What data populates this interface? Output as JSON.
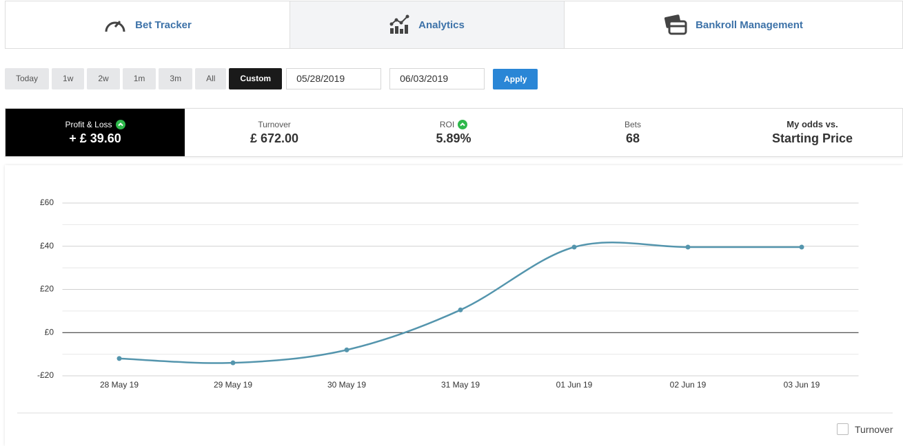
{
  "tabs": [
    "Bet Tracker",
    "Analytics",
    "Bankroll Management"
  ],
  "filters": [
    "Today",
    "1w",
    "2w",
    "1m",
    "3m",
    "All",
    "Custom"
  ],
  "date_from": "05/28/2019",
  "date_to": "06/03/2019",
  "apply": "Apply",
  "stats": [
    {
      "label": "Profit & Loss",
      "value": "+ £ 39.60"
    },
    {
      "label": "Turnover",
      "value": "£ 672.00"
    },
    {
      "label": "ROI",
      "value": "5.89%"
    },
    {
      "label": "Bets",
      "value": "68"
    },
    {
      "label": "My odds vs.",
      "value": "Starting Price"
    }
  ],
  "chart_data": {
    "type": "line",
    "categories": [
      "28 May 19",
      "29 May 19",
      "30 May 19",
      "31 May 19",
      "01 Jun 19",
      "02 Jun 19",
      "03 Jun 19"
    ],
    "series": [
      {
        "name": "Profit & Loss",
        "color": "#5495ad",
        "values": [
          -12,
          -14,
          -8,
          10.5,
          39.6,
          39.6,
          39.6
        ]
      }
    ],
    "ylim": [
      -20,
      60
    ],
    "yticks": [
      {
        "value": 60,
        "label": "£60"
      },
      {
        "value": 40,
        "label": "£40"
      },
      {
        "value": 20,
        "label": "£20"
      },
      {
        "value": 0,
        "label": "£0"
      },
      {
        "value": -20,
        "label": "-£20"
      }
    ],
    "minor_yticks": [
      50,
      30,
      10,
      -10
    ],
    "grid": true,
    "legend": "Turnover"
  }
}
